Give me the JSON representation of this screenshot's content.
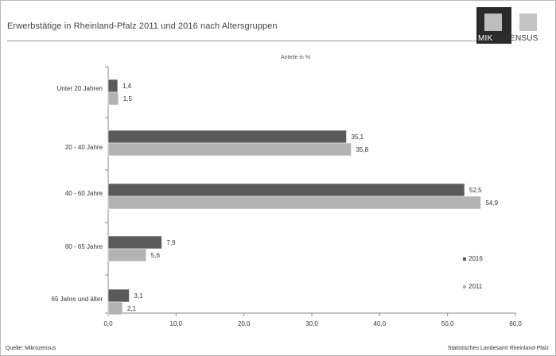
{
  "header": {
    "title": "Erwerbstätige in Rheinland-Pfalz 2011 und 2016 nach Altersgruppen",
    "logo_text": "MIKROZENSUS",
    "logo_text_dark": "MIK",
    "logo_text_light": "ROZENSUS"
  },
  "footer": {
    "source": "Quelle: Mikrozensus",
    "publisher": "Statistisches Landesamt Rheinland-Pfalz"
  },
  "colors": {
    "series_2016": "#5a5a5a",
    "series_2011": "#b3b3b3"
  },
  "chart_data": {
    "type": "bar",
    "orientation": "horizontal",
    "title": "Erwerbstätige in Rheinland-Pfalz 2011 und 2016 nach Altersgruppen",
    "subtitle": "Anteile in %",
    "categories": [
      "Unter 20 Jahren",
      "20 - 40 Jahre",
      "40 - 60 Jahre",
      "60 - 65 Jahre",
      "65 Jahre und älter"
    ],
    "series": [
      {
        "name": "2016",
        "values": [
          1.4,
          35.1,
          52.5,
          7.9,
          3.1
        ],
        "labels": [
          "1,4",
          "35,1",
          "52,5",
          "7,9",
          "3,1"
        ]
      },
      {
        "name": "2011",
        "values": [
          1.5,
          35.8,
          54.9,
          5.6,
          2.1
        ],
        "labels": [
          "1,5",
          "35,8",
          "54,9",
          "5,6",
          "2,1"
        ]
      }
    ],
    "xlim": [
      0,
      60
    ],
    "xticks": [
      "0,0",
      "10,0",
      "20,0",
      "30,0",
      "40,0",
      "50,0",
      "60,0"
    ],
    "grid": false,
    "legend_position": "right"
  }
}
